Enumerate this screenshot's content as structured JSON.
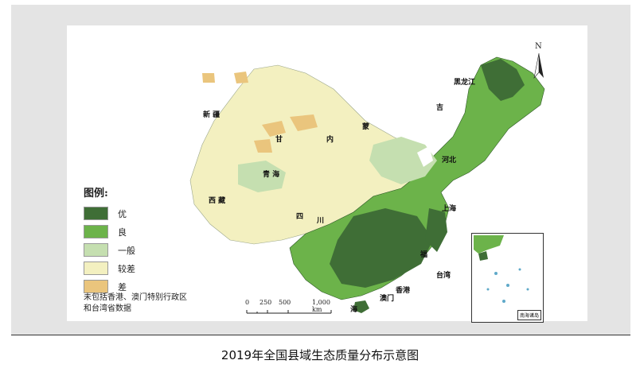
{
  "caption": "2019年全国县域生态质量分布示意图",
  "legend": {
    "title": "图例:",
    "items": [
      {
        "label": "优",
        "color": "#3f6e36"
      },
      {
        "label": "良",
        "color": "#6cb34a"
      },
      {
        "label": "一般",
        "color": "#c5dfb0"
      },
      {
        "label": "较差",
        "color": "#f3f0c0"
      },
      {
        "label": "差",
        "color": "#eac57d"
      }
    ]
  },
  "note": {
    "line1": "未包括香港、澳门特别行政区",
    "line2": "和台湾省数据"
  },
  "scale": {
    "labels": [
      "0",
      "250",
      "500",
      "1,000 km"
    ]
  },
  "north_label": "N",
  "inset_label": "南海诸岛",
  "places": [
    {
      "name": "新  疆"
    },
    {
      "name": "西  藏"
    },
    {
      "name": "青  海"
    },
    {
      "name": "甘"
    },
    {
      "name": "内"
    },
    {
      "name": "蒙"
    },
    {
      "name": "吉"
    },
    {
      "name": "黑龙江"
    },
    {
      "name": "河北"
    },
    {
      "name": "上海"
    },
    {
      "name": "四"
    },
    {
      "name": "川"
    },
    {
      "name": "福"
    },
    {
      "name": "台湾"
    },
    {
      "name": "香港"
    },
    {
      "name": "澳门"
    },
    {
      "name": "海"
    }
  ]
}
